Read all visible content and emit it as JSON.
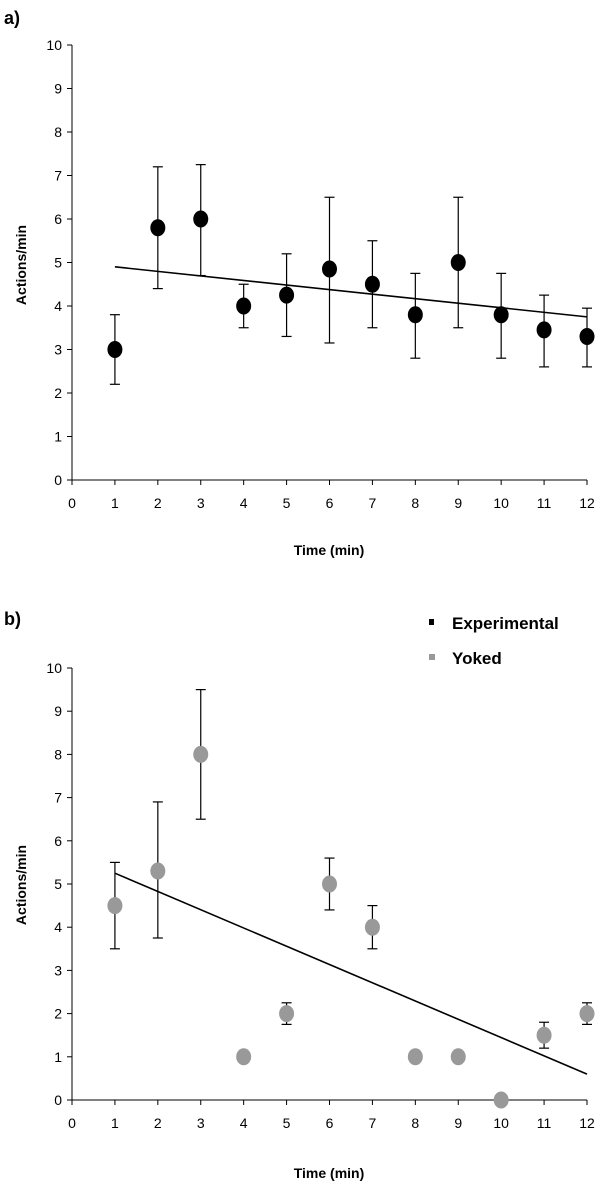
{
  "chart_data": [
    {
      "type": "scatter",
      "panel_label": "a)",
      "xlabel": "Time (min)",
      "ylabel": "Actions/min",
      "xlim": [
        0,
        12
      ],
      "ylim": [
        0,
        10
      ],
      "x_ticks": [
        "0",
        "1",
        "2",
        "3",
        "4",
        "5",
        "6",
        "7",
        "8",
        "9",
        "10",
        "11",
        "12"
      ],
      "y_ticks": [
        "0",
        "1",
        "2",
        "3",
        "4",
        "5",
        "6",
        "7",
        "8",
        "9",
        "10"
      ],
      "grid": false,
      "marker_color": "#000000",
      "series": [
        {
          "x": [
            1,
            2,
            3,
            4,
            5,
            6,
            7,
            8,
            9,
            10,
            11,
            12
          ],
          "y": [
            3.0,
            5.8,
            6.0,
            4.0,
            4.25,
            4.85,
            4.5,
            3.8,
            5.0,
            3.8,
            3.45,
            3.3
          ],
          "error_low": [
            2.2,
            4.4,
            4.7,
            3.5,
            3.3,
            3.15,
            3.5,
            2.8,
            3.5,
            2.8,
            2.6,
            2.6
          ],
          "error_high": [
            3.8,
            7.2,
            7.25,
            4.5,
            5.2,
            6.5,
            5.5,
            4.75,
            6.5,
            4.75,
            4.25,
            3.95
          ]
        }
      ],
      "trendline": {
        "x": [
          1,
          12
        ],
        "y": [
          4.9,
          3.75
        ]
      }
    },
    {
      "type": "scatter",
      "panel_label": "b)",
      "xlabel": "Time (min)",
      "ylabel": "Actions/min",
      "xlim": [
        0,
        12
      ],
      "ylim": [
        0,
        10
      ],
      "x_ticks": [
        "0",
        "1",
        "2",
        "3",
        "4",
        "5",
        "6",
        "7",
        "8",
        "9",
        "10",
        "11",
        "12"
      ],
      "y_ticks": [
        "0",
        "1",
        "2",
        "3",
        "4",
        "5",
        "6",
        "7",
        "8",
        "9",
        "10"
      ],
      "grid": false,
      "legend_position": "top-right",
      "legend": [
        {
          "name": "Experimental",
          "color": "#000000"
        },
        {
          "name": "Yoked",
          "color": "#999999"
        }
      ],
      "marker_color": "#999999",
      "series": [
        {
          "x": [
            1,
            2,
            3,
            4,
            5,
            6,
            7,
            8,
            9,
            10,
            11,
            12
          ],
          "y": [
            4.5,
            5.3,
            8.0,
            1.0,
            2.0,
            5.0,
            4.0,
            1.0,
            1.0,
            0.0,
            1.5,
            2.0
          ],
          "error_low": [
            3.5,
            3.75,
            6.5,
            1.0,
            1.75,
            4.4,
            3.5,
            1.0,
            1.0,
            0.0,
            1.2,
            1.75
          ],
          "error_high": [
            5.5,
            6.9,
            9.5,
            1.0,
            2.25,
            5.6,
            4.5,
            1.0,
            1.0,
            0.0,
            1.8,
            2.25
          ]
        }
      ],
      "trendline": {
        "x": [
          1,
          12
        ],
        "y": [
          5.25,
          0.6
        ]
      }
    }
  ]
}
